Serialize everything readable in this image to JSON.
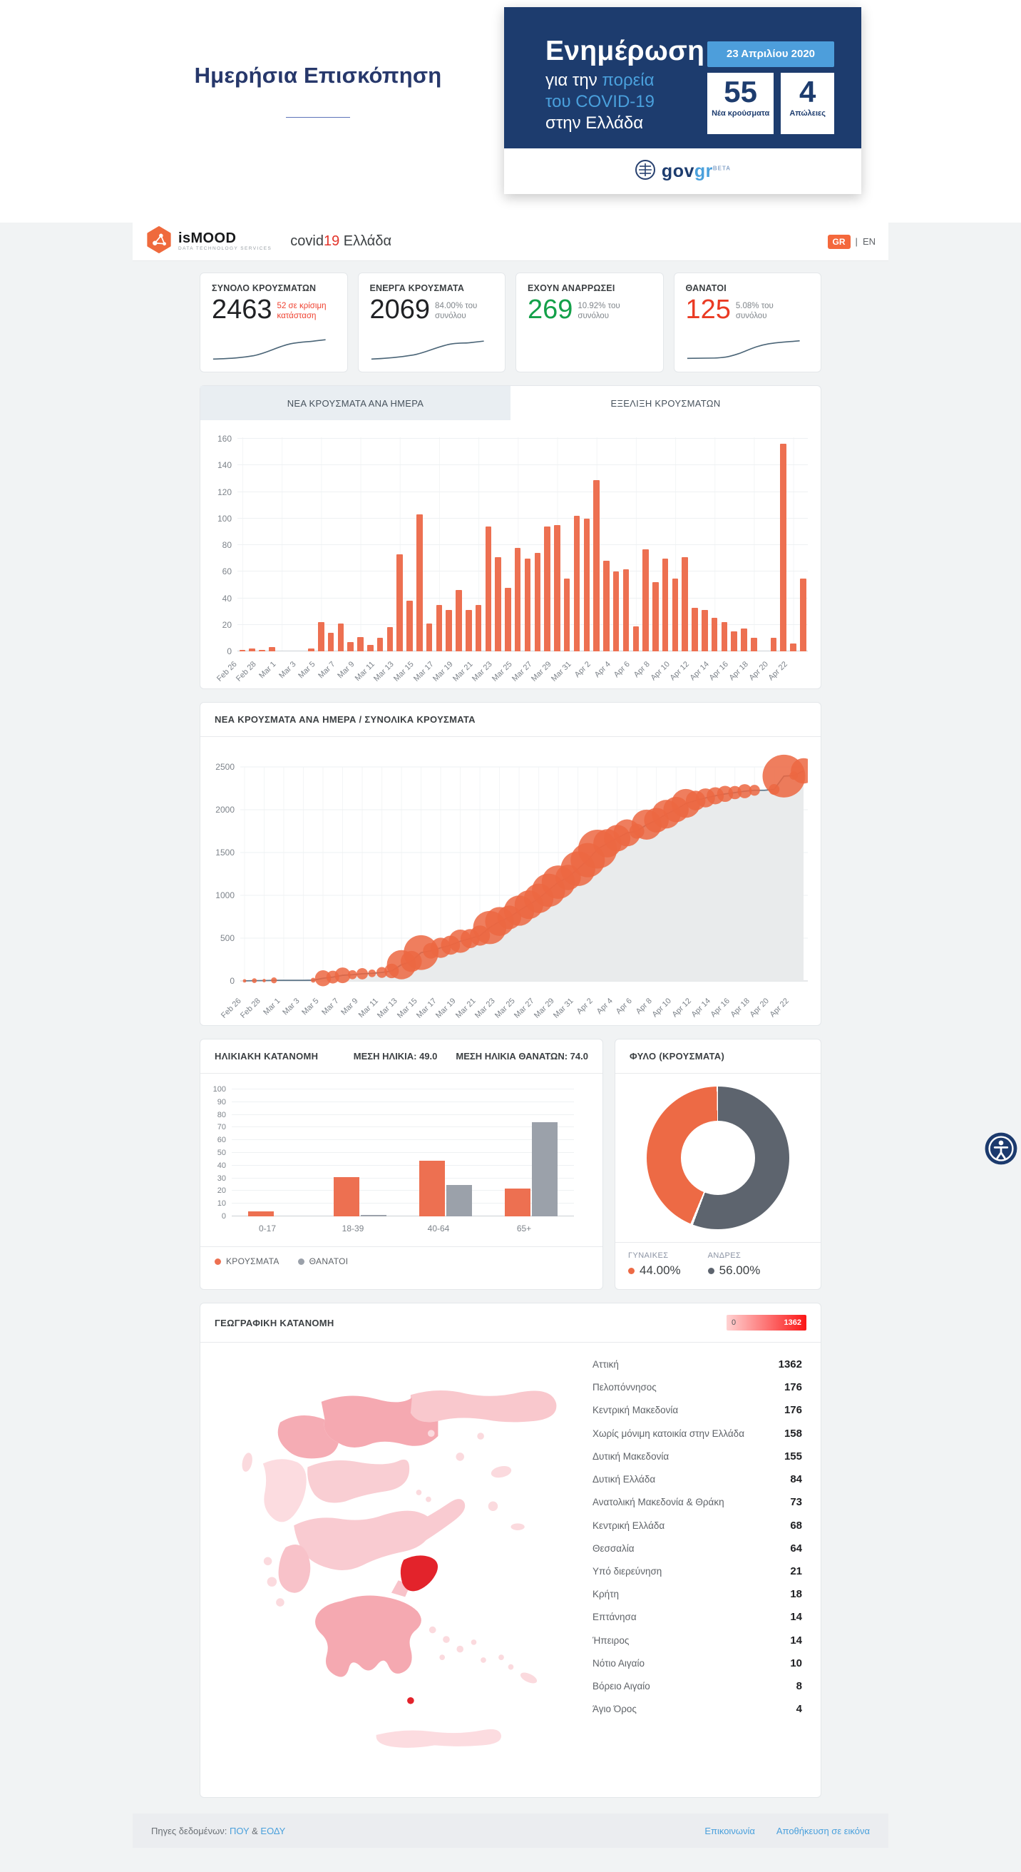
{
  "page": {
    "title": "Ημερήσια Επισκόπηση"
  },
  "update_card": {
    "heading": "Ενημέρωση",
    "line2_prefix": "για την ",
    "line2_highlight": "πορεία",
    "line3": "του COVID-19",
    "line4": "στην Ελλάδα",
    "date": "23 Απριλίου 2020",
    "new_cases": {
      "value": "55",
      "label": "Νέα κρούσματα"
    },
    "deaths": {
      "value": "4",
      "label": "Απώλειες"
    },
    "gov_gov": "gov",
    "gov_gr": "gr",
    "gov_beta": "BETA"
  },
  "navbar": {
    "brand_is": "is",
    "brand_mood": "MOOD",
    "brand_sub": "DATA TECHNOLOGY SERVICES",
    "app_title_prefix": "covid",
    "app_title_num": "19",
    "app_title_suffix": " Ελλάδα",
    "lang_active": "GR",
    "lang_divider": "|",
    "lang_other": "EN"
  },
  "stat_cards": [
    {
      "label": "ΣΥΝΟΛΟ ΚΡΟΥΣΜΑΤΩΝ",
      "value": "2463",
      "note": "52 σε κρίσιμη κατάσταση"
    },
    {
      "label": "ΕΝΕΡΓΑ ΚΡΟΥΣΜΑΤΑ",
      "value": "2069",
      "note": "84.00% του συνόλου"
    },
    {
      "label": "ΕΧΟΥΝ ΑΝΑΡΡΩΣΕΙ",
      "value": "269",
      "note": "10.92% του συνόλου"
    },
    {
      "label": "ΘΑΝΑΤΟΙ",
      "value": "125",
      "note": "5.08% του συνόλου"
    }
  ],
  "tabs": {
    "active": "ΝΕΑ ΚΡΟΥΣΜΑΤΑ ΑΝΑ ΗΜΕΡΑ",
    "inactive": "ΕΞΕΛΙΞΗ ΚΡΟΥΣΜΑΤΩΝ"
  },
  "chart_data": [
    {
      "type": "bar",
      "title": "ΝΕΑ ΚΡΟΥΣΜΑΤΑ ΑΝΑ ΗΜΕΡΑ",
      "x": [
        "Feb 26",
        "Feb 27",
        "Feb 28",
        "Feb 29",
        "Mar 1",
        "Mar 2",
        "Mar 3",
        "Mar 4",
        "Mar 5",
        "Mar 6",
        "Mar 7",
        "Mar 8",
        "Mar 9",
        "Mar 10",
        "Mar 11",
        "Mar 12",
        "Mar 13",
        "Mar 14",
        "Mar 15",
        "Mar 16",
        "Mar 17",
        "Mar 18",
        "Mar 19",
        "Mar 20",
        "Mar 21",
        "Mar 22",
        "Mar 23",
        "Mar 24",
        "Mar 25",
        "Mar 26",
        "Mar 27",
        "Mar 28",
        "Mar 29",
        "Mar 30",
        "Mar 31",
        "Apr 1",
        "Apr 2",
        "Apr 3",
        "Apr 4",
        "Apr 5",
        "Apr 6",
        "Apr 7",
        "Apr 8",
        "Apr 9",
        "Apr 10",
        "Apr 11",
        "Apr 12",
        "Apr 13",
        "Apr 14",
        "Apr 15",
        "Apr 16",
        "Apr 17",
        "Apr 18",
        "Apr 19",
        "Apr 20",
        "Apr 21",
        "Apr 22",
        "Apr 23"
      ],
      "values": [
        1,
        2,
        1,
        3,
        0,
        0,
        0,
        2,
        22,
        14,
        21,
        7,
        11,
        5,
        10,
        18,
        73,
        38,
        103,
        21,
        35,
        31,
        46,
        31,
        35,
        94,
        71,
        48,
        78,
        70,
        74,
        94,
        95,
        55,
        102,
        100,
        129,
        68,
        60,
        62,
        19,
        77,
        52,
        70,
        55,
        71,
        33,
        31,
        25,
        22,
        15,
        17,
        10,
        0,
        10,
        156,
        6,
        55
      ],
      "ylim": [
        0,
        160
      ],
      "ytick_step": 20,
      "bar_color": "#ed7051",
      "grid": true,
      "x_label_every": 2
    },
    {
      "type": "area",
      "title": "ΝΕΑ ΚΡΟΥΣΜΑΤΑ ΑΝΑ ΗΜΕΡΑ / ΣΥΝΟΛΙΚΑ ΚΡΟΥΣΜΑΤΑ",
      "note": "bubble size = daily new cases (values shared with chart 0), area = cumulative total",
      "ylim": [
        0,
        2500
      ],
      "yticks": [
        0,
        500,
        1000,
        1500,
        2000,
        2500
      ],
      "area_color": "#e9ebec",
      "line_color": "#5f7689",
      "bubble_color": "#ec6742"
    },
    {
      "type": "bar",
      "title": "ΗΛΙΚΙΑΚΗ ΚΑΤΑΝΟΜΗ",
      "subtitle_mean_age": "ΜΕΣΗ ΗΛΙΚΙΑ: 49.0",
      "subtitle_mean_death_age": "ΜΕΣΗ ΗΛΙΚΙΑ ΘΑΝΑΤΩΝ: 74.0",
      "categories": [
        "0-17",
        "18-39",
        "40-64",
        "65+"
      ],
      "series": [
        {
          "name": "ΚΡΟΥΣΜΑΤΑ",
          "color": "#ed7051",
          "values": [
            4,
            31,
            44,
            22
          ]
        },
        {
          "name": "ΘΑΝΑΤΟΙ",
          "color": "#9ba1aa",
          "values": [
            0,
            1,
            25,
            74
          ]
        }
      ],
      "ylim": [
        0,
        100
      ],
      "ytick_step": 10
    },
    {
      "type": "pie",
      "title": "ΦΥΛΟ (ΚΡΟΥΣΜΑΤΑ)",
      "slices": [
        {
          "label": "ΓΥΝΑΙΚΕΣ",
          "value": 44.0,
          "display": "44.00%",
          "color": "#ed6a45"
        },
        {
          "label": "ΑΝΔΡΕΣ",
          "value": 56.0,
          "display": "56.00%",
          "color": "#5d646e"
        }
      ]
    },
    {
      "type": "heatmap",
      "title": "ΓΕΩΓΡΑΦΙΚΗ ΚΑΤΑΝΟΜΗ",
      "legend": {
        "min": "0",
        "max": "1362"
      },
      "regions": [
        {
          "name": "Αττική",
          "value": "1362"
        },
        {
          "name": "Πελοπόννησος",
          "value": "176"
        },
        {
          "name": "Κεντρική Μακεδονία",
          "value": "176"
        },
        {
          "name": "Χωρίς μόνιμη κατοικία στην Ελλάδα",
          "value": "158"
        },
        {
          "name": "Δυτική Μακεδονία",
          "value": "155"
        },
        {
          "name": "Δυτική Ελλάδα",
          "value": "84"
        },
        {
          "name": "Ανατολική Μακεδονία & Θράκη",
          "value": "73"
        },
        {
          "name": "Κεντρική Ελλάδα",
          "value": "68"
        },
        {
          "name": "Θεσσαλία",
          "value": "64"
        },
        {
          "name": "Υπό διερεύνηση",
          "value": "21"
        },
        {
          "name": "Κρήτη",
          "value": "18"
        },
        {
          "name": "Επτάνησα",
          "value": "14"
        },
        {
          "name": "Ήπειρος",
          "value": "14"
        },
        {
          "name": "Νότιο Αιγαίο",
          "value": "10"
        },
        {
          "name": "Βόρειο Αιγαίο",
          "value": "8"
        },
        {
          "name": "Άγιο Όρος",
          "value": "4"
        }
      ]
    }
  ],
  "footer": {
    "sources_prefix": "Πηγες δεδομένων:",
    "source1": "ΠΟΥ",
    "amp": "&",
    "source2": "ΕΟΔΥ",
    "contact": "Επικοινωνία",
    "save": "Αποθήκευση σε εικόνα"
  }
}
